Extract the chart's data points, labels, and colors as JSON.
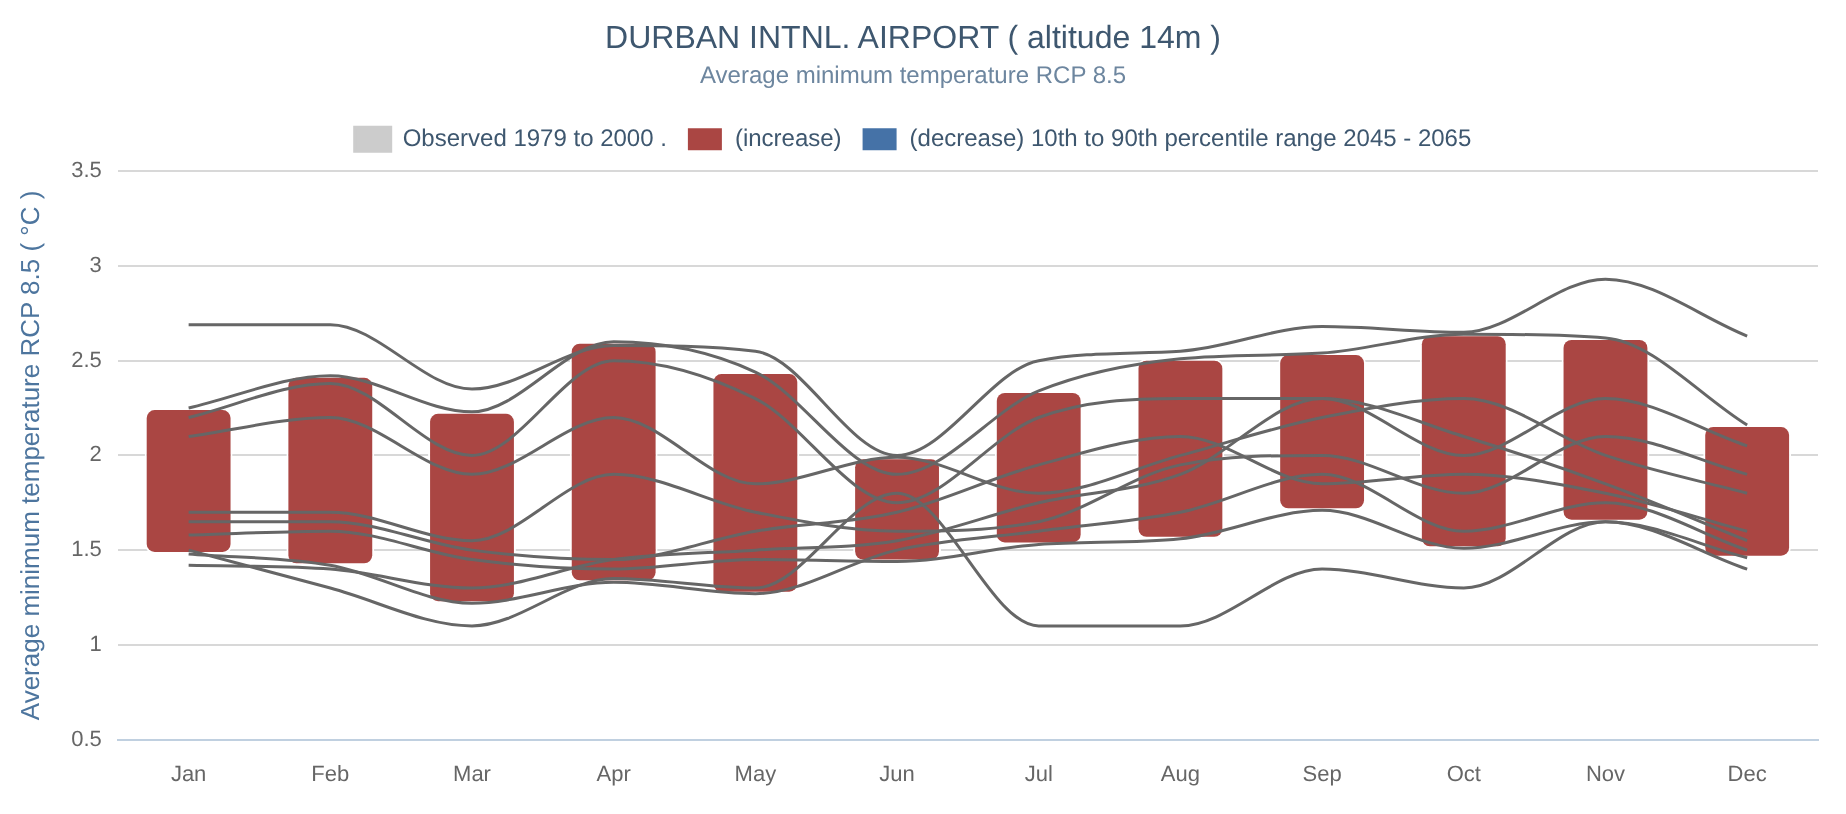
{
  "chart_data": {
    "type": "bar",
    "title": "DURBAN INTNL. AIRPORT ( altitude 14m )",
    "subtitle": "Average minimum temperature RCP 8.5",
    "ylabel": "Average minimum temperature RCP 8.5 ( °C )",
    "categories": [
      "Jan",
      "Feb",
      "Mar",
      "Apr",
      "May",
      "Jun",
      "Jul",
      "Aug",
      "Sep",
      "Oct",
      "Nov",
      "Dec"
    ],
    "ylim": [
      0.5,
      3.5
    ],
    "yticks": [
      0.5,
      1,
      1.5,
      2,
      2.5,
      3,
      3.5
    ],
    "grid": "y",
    "legend": "top",
    "series": [
      {
        "type": "line",
        "name": "Observed 1979 to 2000 .",
        "color": "#cccccc",
        "values": [
          null,
          null,
          null,
          null,
          null,
          null,
          null,
          null,
          null,
          null,
          null,
          null
        ]
      },
      {
        "type": "bar",
        "name": "(increase)",
        "color": "#aa4643",
        "base": [
          1.48,
          1.42,
          1.22,
          1.33,
          1.27,
          1.44,
          1.53,
          1.56,
          1.71,
          1.51,
          1.65,
          1.46
        ],
        "values": [
          0.77,
          1.0,
          1.01,
          1.27,
          1.17,
          0.55,
          0.81,
          0.95,
          0.83,
          1.13,
          0.97,
          0.7
        ]
      },
      {
        "type": "bar",
        "name": "(decrease) 10th to 90th percentile range 2045 - 2065",
        "color": "#4572a7",
        "values": [
          null,
          null,
          null,
          null,
          null,
          null,
          null,
          null,
          null,
          null,
          null,
          null
        ]
      },
      {
        "type": "line",
        "color": "#666666",
        "values": [
          2.69,
          2.69,
          2.35,
          2.58,
          2.55,
          2.0,
          2.5,
          2.55,
          2.68,
          2.65,
          2.93,
          2.63
        ]
      },
      {
        "type": "line",
        "color": "#666666",
        "values": [
          2.25,
          2.42,
          2.23,
          2.6,
          2.44,
          1.9,
          2.34,
          2.51,
          2.54,
          2.64,
          2.62,
          2.16
        ]
      },
      {
        "type": "line",
        "color": "#666666",
        "values": [
          2.2,
          2.38,
          2.0,
          2.5,
          2.3,
          1.75,
          2.2,
          2.3,
          2.3,
          2.0,
          2.3,
          2.05
        ]
      },
      {
        "type": "line",
        "color": "#666666",
        "values": [
          2.1,
          2.2,
          1.9,
          2.2,
          1.85,
          1.99,
          1.8,
          2.0,
          2.2,
          2.3,
          2.0,
          1.8
        ]
      },
      {
        "type": "line",
        "color": "#666666",
        "values": [
          1.7,
          1.7,
          1.55,
          1.9,
          1.7,
          1.6,
          1.65,
          1.95,
          2.0,
          1.8,
          2.1,
          1.9
        ]
      },
      {
        "type": "line",
        "color": "#666666",
        "values": [
          1.65,
          1.65,
          1.5,
          1.45,
          1.6,
          1.7,
          1.95,
          2.1,
          1.85,
          1.9,
          1.8,
          1.6
        ]
      },
      {
        "type": "line",
        "color": "#666666",
        "values": [
          1.58,
          1.6,
          1.45,
          1.4,
          1.45,
          1.44,
          1.53,
          1.56,
          1.71,
          1.51,
          1.65,
          1.46
        ]
      },
      {
        "type": "line",
        "color": "#666666",
        "values": [
          1.48,
          1.42,
          1.22,
          1.33,
          1.27,
          1.5,
          1.6,
          1.7,
          1.9,
          1.6,
          1.75,
          1.5
        ]
      },
      {
        "type": "line",
        "color": "#666666",
        "values": [
          1.5,
          1.3,
          1.1,
          1.35,
          1.3,
          1.8,
          1.1,
          1.1,
          1.4,
          1.3,
          1.65,
          1.4
        ]
      },
      {
        "type": "line",
        "color": "#666666",
        "values": [
          1.42,
          1.4,
          1.3,
          1.45,
          1.5,
          1.55,
          1.75,
          1.9,
          2.3,
          2.1,
          1.85,
          1.55
        ]
      }
    ]
  }
}
